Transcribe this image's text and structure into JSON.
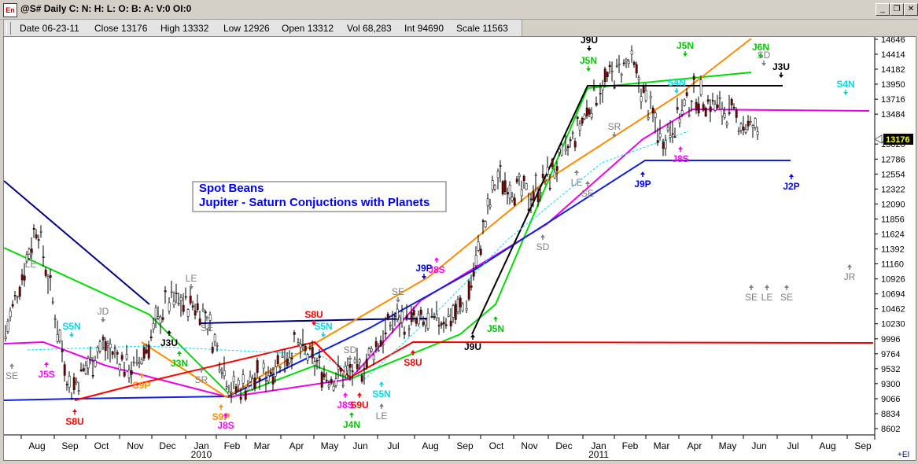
{
  "window": {
    "title": "@S# Daily C: N: H: L: O: B: A: V:0 OI:0",
    "minimize_icon": "minimize-icon",
    "restore_icon": "restore-icon",
    "close_icon": "close-icon"
  },
  "infobar": {
    "date": "Date 06-23-11",
    "close": "Close 13176",
    "high": "High 13332",
    "low": "Low 12926",
    "open": "Open 13312",
    "vol": "Vol 68,283",
    "int": "Int 94690",
    "scale": "Scale 11563"
  },
  "chart_data": {
    "type": "bar",
    "subtype": "daily-ohlc-price-chart",
    "title": "Spot Beans",
    "subtitle": "Jupiter - Saturn Conjuctions with Planets",
    "last_price_label": "13176",
    "footer_label": "+EI",
    "ylim": [
      8602,
      14646
    ],
    "y_ticks": [
      14646,
      14414,
      14182,
      13950,
      13716,
      13484,
      13020,
      12786,
      12554,
      12322,
      12090,
      11856,
      11624,
      11392,
      11160,
      10926,
      10694,
      10462,
      10230,
      9996,
      9764,
      9532,
      9300,
      9066,
      8834,
      8602
    ],
    "x_ticks": [
      "Aug",
      "Sep",
      "Oct",
      "Nov",
      "Dec",
      "Jan",
      "Feb",
      "Mar",
      "Apr",
      "May",
      "Jun",
      "Jul",
      "Aug",
      "Sep",
      "Oct",
      "Nov",
      "Dec",
      "Jan",
      "Feb",
      "Mar",
      "Apr",
      "May",
      "Jun",
      "Jul",
      "Aug",
      "Sep"
    ],
    "x_year_labels": [
      {
        "after": "Jan",
        "index": 5,
        "label": "2010"
      },
      {
        "after": "Jan",
        "index": 17,
        "label": "2011"
      }
    ],
    "close_series_approx": {
      "months": [
        "Jul-09",
        "Aug-09",
        "Sep-09",
        "Oct-09",
        "Nov-09",
        "Dec-09",
        "Jan-10",
        "Feb-10",
        "Mar-10",
        "Apr-10",
        "May-10",
        "Jun-10",
        "Jul-10",
        "Aug-10",
        "Sep-10",
        "Oct-10",
        "Nov-10",
        "Dec-10",
        "Jan-11",
        "Feb-11",
        "Mar-11",
        "Apr-11",
        "May-11",
        "Jun-11"
      ],
      "values": [
        10000,
        11800,
        9200,
        9900,
        9500,
        10600,
        10500,
        9200,
        9400,
        9900,
        9400,
        9500,
        10300,
        10200,
        10500,
        12500,
        12200,
        12800,
        13900,
        14300,
        13100,
        13800,
        13500,
        13176
      ]
    },
    "astro_labels": [
      {
        "text": "SE",
        "color": "#808080"
      },
      {
        "text": "LE",
        "color": "#808080"
      },
      {
        "text": "J5S",
        "color": "#ff00ff"
      },
      {
        "text": "S5N",
        "color": "#00d8e8"
      },
      {
        "text": "S8U",
        "color": "#ff0000"
      },
      {
        "text": "JD",
        "color": "#808080"
      },
      {
        "text": "S9P",
        "color": "#ff8c00"
      },
      {
        "text": "J3U",
        "color": "#000000"
      },
      {
        "text": "J3N",
        "color": "#00cc00"
      },
      {
        "text": "LE",
        "color": "#808080"
      },
      {
        "text": "SE",
        "color": "#808080"
      },
      {
        "text": "SR",
        "color": "#808080"
      },
      {
        "text": "S9P",
        "color": "#ff8c00"
      },
      {
        "text": "J8S",
        "color": "#ff00ff"
      },
      {
        "text": "S8U",
        "color": "#ff0000"
      },
      {
        "text": "S5N",
        "color": "#00d8e8"
      },
      {
        "text": "SD",
        "color": "#808080"
      },
      {
        "text": "J8S",
        "color": "#ff00ff"
      },
      {
        "text": "S9U",
        "color": "#ff0000"
      },
      {
        "text": "S5N",
        "color": "#00d8e8"
      },
      {
        "text": "LE",
        "color": "#808080"
      },
      {
        "text": "J4N",
        "color": "#00cc00"
      },
      {
        "text": "SE",
        "color": "#808080"
      },
      {
        "text": "J9P",
        "color": "#0000ff"
      },
      {
        "text": "J8S",
        "color": "#ff00ff"
      },
      {
        "text": "S8U",
        "color": "#ff0000"
      },
      {
        "text": "J9U",
        "color": "#000000"
      },
      {
        "text": "J5N",
        "color": "#00cc00"
      },
      {
        "text": "SD",
        "color": "#808080"
      },
      {
        "text": "LE",
        "color": "#808080"
      },
      {
        "text": "SE",
        "color": "#808080"
      },
      {
        "text": "SR",
        "color": "#808080"
      },
      {
        "text": "J9U",
        "color": "#000000"
      },
      {
        "text": "J5N",
        "color": "#00cc00"
      },
      {
        "text": "S4N",
        "color": "#00d8e8"
      },
      {
        "text": "J5N",
        "color": "#00cc00"
      },
      {
        "text": "J8S",
        "color": "#ff00ff"
      },
      {
        "text": "J9P",
        "color": "#0000ff"
      },
      {
        "text": "J6N",
        "color": "#00cc00"
      },
      {
        "text": "SD",
        "color": "#808080"
      },
      {
        "text": "J3U",
        "color": "#000000"
      },
      {
        "text": "S4N",
        "color": "#00d8e8"
      },
      {
        "text": "J2P",
        "color": "#0000ff"
      },
      {
        "text": "JR",
        "color": "#808080"
      },
      {
        "text": "SE",
        "color": "#808080"
      },
      {
        "text": "LE",
        "color": "#808080"
      },
      {
        "text": "SE",
        "color": "#808080"
      }
    ],
    "line_colors": {
      "price_bars": "#000000",
      "up_candle": "#ffffff",
      "down_candle": "#800000",
      "navy": "#000080",
      "green": "#00dd00",
      "magenta": "#ee00ee",
      "blue": "#1020e0",
      "orange": "#ff8c00",
      "red": "#ff0000",
      "black": "#000000",
      "cyan": "#00e0ff"
    },
    "grid": false,
    "legend": "none"
  }
}
